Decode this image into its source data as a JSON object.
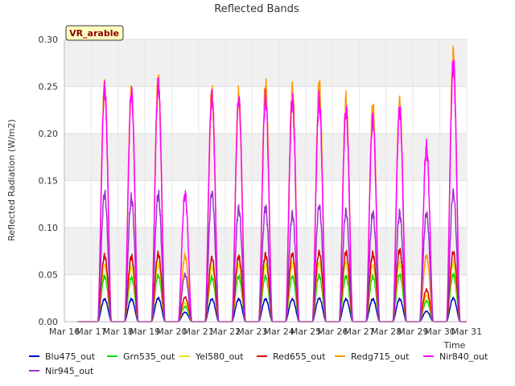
{
  "chart_data": {
    "type": "line",
    "title": "Reflected Bands",
    "xlabel": "Time",
    "ylabel": "Reflected Radiation (W/m2)",
    "badge": "VR_arable",
    "xlim": [
      16,
      31
    ],
    "ylim": [
      0,
      0.3
    ],
    "x_ticks": [
      "Mar 16",
      "Mar 17",
      "Mar 18",
      "Mar 19",
      "Mar 20",
      "Mar 21",
      "Mar 22",
      "Mar 23",
      "Mar 24",
      "Mar 25",
      "Mar 26",
      "Mar 27",
      "Mar 28",
      "Mar 29",
      "Mar 30",
      "Mar 31"
    ],
    "y_ticks": [
      "0.00",
      "0.05",
      "0.10",
      "0.15",
      "0.20",
      "0.25",
      "0.30"
    ],
    "grid": true,
    "legend_position": "bottom",
    "day_centers": [
      17.5,
      18.5,
      19.5,
      20.5,
      21.5,
      22.5,
      23.5,
      24.5,
      25.5,
      26.5,
      27.5,
      28.5,
      29.5,
      30.5
    ],
    "series": [
      {
        "name": "Blu475_out",
        "color": "#0000cc",
        "peaks": [
          0.024,
          0.024,
          0.025,
          0.01,
          0.024,
          0.024,
          0.024,
          0.024,
          0.025,
          0.024,
          0.024,
          0.024,
          0.011,
          0.025
        ]
      },
      {
        "name": "Grn535_out",
        "color": "#00dd00",
        "peaks": [
          0.048,
          0.047,
          0.049,
          0.016,
          0.047,
          0.048,
          0.048,
          0.048,
          0.049,
          0.048,
          0.048,
          0.05,
          0.022,
          0.05
        ]
      },
      {
        "name": "Yel580_out",
        "color": "#e6e600",
        "peaks": [
          0.06,
          0.058,
          0.061,
          0.02,
          0.058,
          0.06,
          0.06,
          0.061,
          0.063,
          0.062,
          0.06,
          0.062,
          0.028,
          0.062
        ]
      },
      {
        "name": "Red655_out",
        "color": "#dd0000",
        "peaks": [
          0.07,
          0.069,
          0.072,
          0.026,
          0.068,
          0.069,
          0.071,
          0.072,
          0.074,
          0.074,
          0.072,
          0.076,
          0.034,
          0.074
        ]
      },
      {
        "name": "Redg715_out",
        "color": "#ff9900",
        "peaks": [
          0.248,
          0.245,
          0.258,
          0.07,
          0.242,
          0.24,
          0.252,
          0.248,
          0.252,
          0.235,
          0.228,
          0.233,
          0.07,
          0.282
        ]
      },
      {
        "name": "Nir840_out",
        "color": "#ff00ff",
        "peaks": [
          0.248,
          0.244,
          0.252,
          0.135,
          0.24,
          0.236,
          0.238,
          0.235,
          0.235,
          0.224,
          0.215,
          0.225,
          0.185,
          0.273
        ]
      },
      {
        "name": "Nir945_out",
        "color": "#9933cc",
        "peaks": [
          0.136,
          0.131,
          0.135,
          0.05,
          0.137,
          0.12,
          0.121,
          0.114,
          0.123,
          0.117,
          0.115,
          0.115,
          0.115,
          0.137
        ]
      }
    ]
  }
}
